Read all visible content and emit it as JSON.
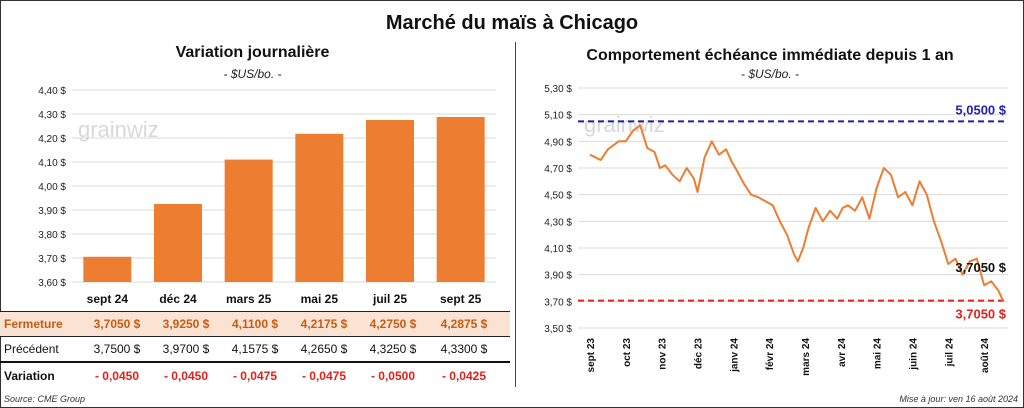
{
  "title": "Marché du maïs à Chicago",
  "source": "Source: CME Group",
  "update": "Mise à jour: ven 16 août 2024",
  "watermark": "grainwiz",
  "colors": {
    "bar": "#ed7d31",
    "line": "#ed7d31",
    "high": "#1f1fb4",
    "low": "#e0211e"
  },
  "table": {
    "row_labels": {
      "fermeture": "Fermeture",
      "precedent": "Précédent",
      "variation": "Variation"
    },
    "fermeture": [
      "3,7050 $",
      "3,9250 $",
      "4,1100 $",
      "4,2175 $",
      "4,2750 $",
      "4,2875 $"
    ],
    "precedent": [
      "3,7500 $",
      "3,9700 $",
      "4,1575 $",
      "4,2650 $",
      "4,3250 $",
      "4,3300 $"
    ],
    "variation": [
      "- 0,0450",
      "- 0,0450",
      "- 0,0475",
      "- 0,0475",
      "- 0,0500",
      "- 0,0425"
    ]
  },
  "chart_data": [
    {
      "type": "bar",
      "title": "Variation journalière",
      "subtitle": "- $US/bo. -",
      "categories": [
        "sept 24",
        "déc 24",
        "mars 25",
        "mai 25",
        "juil 25",
        "sept 25"
      ],
      "values": [
        3.705,
        3.925,
        4.11,
        4.2175,
        4.275,
        4.2875
      ],
      "ylim": [
        3.6,
        4.4
      ],
      "yticks": [
        3.6,
        3.7,
        3.8,
        3.9,
        4.0,
        4.1,
        4.2,
        4.3,
        4.4
      ],
      "ytick_labels": [
        "3,60 $",
        "3,70 $",
        "3,80 $",
        "3,90 $",
        "4,00 $",
        "4,10 $",
        "4,20 $",
        "4,30 $",
        "4,40 $"
      ],
      "grid": true
    },
    {
      "type": "line",
      "title": "Comportement  échéance immédiate depuis 1 an",
      "subtitle": "- $US/bo. -",
      "ylim": [
        3.5,
        5.3
      ],
      "yticks": [
        3.5,
        3.7,
        3.9,
        4.1,
        4.3,
        4.5,
        4.7,
        4.9,
        5.1,
        5.3
      ],
      "ytick_labels": [
        "3,50 $",
        "3,70 $",
        "3,90 $",
        "4,10 $",
        "4,30 $",
        "4,50 $",
        "4,70 $",
        "4,90 $",
        "5,10 $",
        "5,30 $"
      ],
      "x_labels": [
        "sept 23",
        "oct 23",
        "nov 23",
        "déc 23",
        "janv 24",
        "févr 24",
        "mars 24",
        "avr 24",
        "mai 24",
        "juin 24",
        "juil 24",
        "août 24"
      ],
      "high": 5.05,
      "high_label": "5,0500 $",
      "low": 3.705,
      "low_label": "3,7050 $",
      "last_label": "3,7050 $",
      "series": [
        {
          "x": [
            0,
            0.3,
            0.5,
            0.8,
            1.0,
            1.2,
            1.4,
            1.6,
            1.8,
            1.95,
            2.1,
            2.3,
            2.5,
            2.7,
            2.9,
            3.0,
            3.2,
            3.4,
            3.6,
            3.8,
            3.95,
            4.1,
            4.3,
            4.5,
            4.7,
            4.9,
            5.1,
            5.3,
            5.5,
            5.7,
            5.8,
            5.95,
            6.1,
            6.3,
            6.5,
            6.7,
            6.9,
            7.05,
            7.2,
            7.4,
            7.6,
            7.8,
            8.0,
            8.2,
            8.4,
            8.6,
            8.8,
            9.0,
            9.2,
            9.4,
            9.6,
            9.8,
            10.0,
            10.2,
            10.4,
            10.6,
            10.8,
            11.0,
            11.2,
            11.4,
            11.53
          ],
          "y": [
            4.8,
            4.76,
            4.84,
            4.9,
            4.9,
            4.98,
            5.02,
            4.85,
            4.82,
            4.7,
            4.72,
            4.65,
            4.6,
            4.7,
            4.62,
            4.52,
            4.78,
            4.9,
            4.8,
            4.84,
            4.75,
            4.68,
            4.58,
            4.5,
            4.48,
            4.45,
            4.42,
            4.3,
            4.2,
            4.05,
            4.0,
            4.1,
            4.25,
            4.4,
            4.3,
            4.38,
            4.32,
            4.4,
            4.42,
            4.38,
            4.48,
            4.32,
            4.55,
            4.7,
            4.65,
            4.48,
            4.52,
            4.42,
            4.6,
            4.5,
            4.3,
            4.15,
            3.98,
            4.02,
            3.9,
            4.0,
            4.02,
            3.82,
            3.85,
            3.78,
            3.705
          ]
        }
      ],
      "grid": true
    }
  ]
}
